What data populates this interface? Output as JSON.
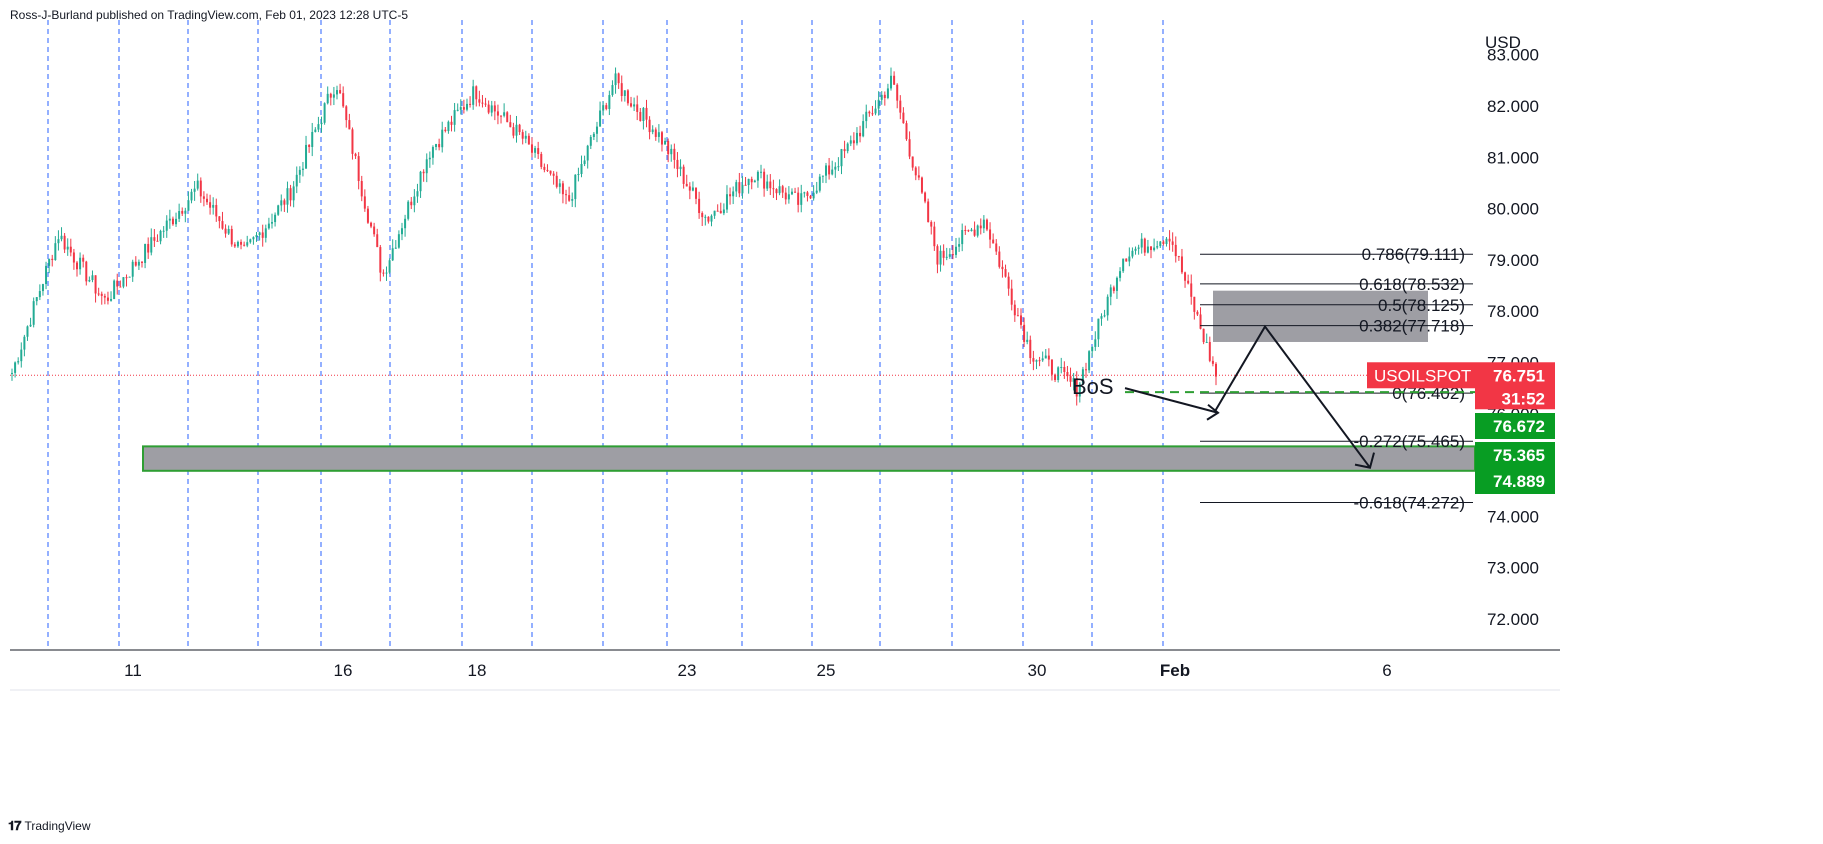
{
  "header": {
    "publish_line": "Ross-J-Burland published on TradingView.com, Feb 01, 2023 12:28 UTC-5"
  },
  "footer": {
    "brand": "TradingView",
    "brand_icon": "tradingview-logo-icon"
  },
  "colors": {
    "up": "#22ab94",
    "down": "#f23645",
    "grid": "#2962ff",
    "zone_fill": "#9e9ea4",
    "zone_border": "#2e9e33",
    "fib_line": "#131722",
    "bos_dash": "#2e9e33",
    "last_price": "#f23645",
    "green_label": "#089d23"
  },
  "chart_data": {
    "type": "candlestick",
    "symbol": "USOILSPOT",
    "currency": "USD",
    "last_price": "76.751",
    "countdown": "31:52",
    "yticks": [
      "72.000",
      "73.000",
      "74.000",
      "75.000",
      "76.000",
      "77.000",
      "78.000",
      "79.000",
      "80.000",
      "81.000",
      "82.000",
      "83.000"
    ],
    "ylim": [
      71.4,
      83.2
    ],
    "xticks": [
      "11",
      "16",
      "18",
      "23",
      "25",
      "30",
      "Feb",
      "6"
    ],
    "price_labels": [
      {
        "text": "76.672",
        "value": 76.672,
        "color": "green"
      },
      {
        "text": "75.365",
        "value": 75.365,
        "color": "green"
      },
      {
        "text": "74.889",
        "value": 74.889,
        "color": "green"
      }
    ],
    "fib_levels": [
      {
        "label": "0.786(79.111)",
        "value": 79.111
      },
      {
        "label": "0.618(78.532)",
        "value": 78.532
      },
      {
        "label": "0.5(78.125)",
        "value": 78.125
      },
      {
        "label": "0.382(77.718)",
        "value": 77.718
      },
      {
        "label": "0(76.402)",
        "value": 76.402
      },
      {
        "label": "-0.272(75.465)",
        "value": 75.465
      },
      {
        "label": "-0.618(74.272)",
        "value": 74.272
      }
    ],
    "annotation_bos": "BoS",
    "zones": [
      {
        "name": "demand-zone",
        "from": 74.889,
        "to": 75.365
      },
      {
        "name": "fib-zone",
        "from": 77.4,
        "to": 78.4
      }
    ],
    "path_anchors": [
      76.8,
      79.5,
      78.2,
      79.3,
      80.4,
      79.1,
      80.3,
      82.5,
      78.7,
      81.1,
      82.3,
      81.4,
      80.1,
      82.5,
      81.4,
      79.8,
      80.7,
      80.1,
      81.1,
      82.5,
      79.0,
      79.8,
      77.2,
      76.5,
      79.1,
      79.5,
      76.75
    ]
  }
}
